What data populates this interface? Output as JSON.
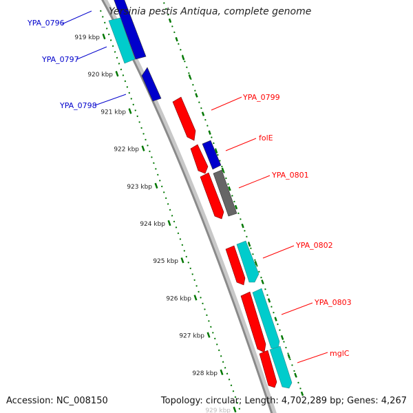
{
  "title": "Yersinia pestis Antiqua, complete genome",
  "footer": {
    "accession": "Accession: NC_008150",
    "summary": "Topology: circular; Length: 4,702,289 bp; Genes: 4,267"
  },
  "colors": {
    "forward_cds": "#ff0000",
    "reverse_cds": "#0000cc",
    "forward_other": "#00cccc",
    "reverse_other": "#666666",
    "ruler": "#007700",
    "backbone": "#888888"
  },
  "ruler_ticks": [
    {
      "kbp": 919,
      "label": "919 kbp"
    },
    {
      "kbp": 920,
      "label": "920 kbp"
    },
    {
      "kbp": 921,
      "label": "921 kbp"
    },
    {
      "kbp": 922,
      "label": "922 kbp"
    },
    {
      "kbp": 923,
      "label": "923 kbp"
    },
    {
      "kbp": 924,
      "label": "924 kbp"
    },
    {
      "kbp": 925,
      "label": "925 kbp"
    },
    {
      "kbp": 926,
      "label": "926 kbp"
    },
    {
      "kbp": 927,
      "label": "927 kbp"
    },
    {
      "kbp": 928,
      "label": "928 kbp"
    },
    {
      "kbp": 929,
      "label": "929 kbp"
    }
  ],
  "gene_labels": [
    {
      "name": "YPA_0796",
      "side": "left",
      "color": "#0000cc"
    },
    {
      "name": "YPA_0797",
      "side": "left",
      "color": "#0000cc"
    },
    {
      "name": "YPA_0798",
      "side": "left",
      "color": "#0000cc"
    },
    {
      "name": "YPA_0799",
      "side": "right",
      "color": "#ff0000"
    },
    {
      "name": "folE",
      "side": "right",
      "color": "#ff0000"
    },
    {
      "name": "YPA_0801",
      "side": "right",
      "color": "#ff0000"
    },
    {
      "name": "YPA_0802",
      "side": "right",
      "color": "#ff0000"
    },
    {
      "name": "YPA_0803",
      "side": "right",
      "color": "#ff0000"
    },
    {
      "name": "mglC",
      "side": "right",
      "color": "#ff0000"
    }
  ]
}
